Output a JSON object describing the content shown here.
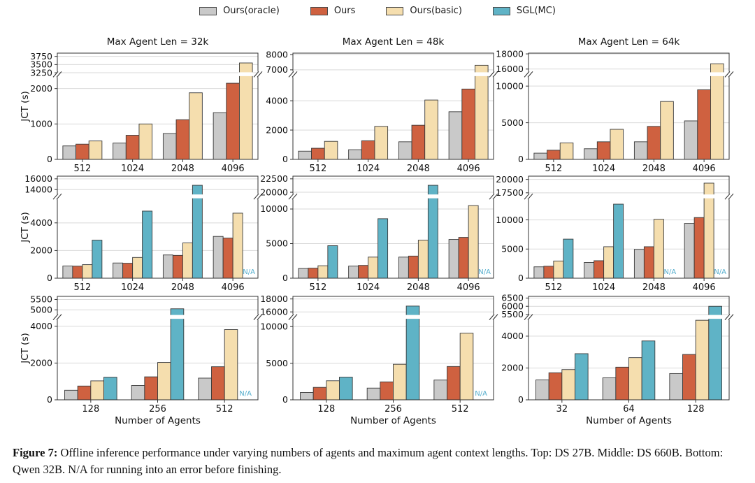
{
  "legend": {
    "items": [
      {
        "label": "Ours(oracle)",
        "color": "#c9c9c9"
      },
      {
        "label": "Ours",
        "color": "#cf6140"
      },
      {
        "label": "Ours(basic)",
        "color": "#f5deae"
      },
      {
        "label": "SGL(MC)",
        "color": "#5fb3c6"
      }
    ]
  },
  "figure_text": {
    "ylabel": "JCT (s)",
    "xlabel": "Number of Agents",
    "na": "N/A"
  },
  "caption": {
    "label": "Figure 7:",
    "text": " Offline inference performance under varying numbers of agents and maximum agent context lengths. Top: DS 27B. Middle: DS 660B. Bottom: Qwen 32B. N/A for running into an error before finishing."
  },
  "colors": {
    "bar_stroke": "#3a3a3a",
    "grid": "#d9d9d9",
    "spine": "#333333",
    "text": "#111111",
    "na_text": "#56aecd"
  },
  "chart_data": [
    {
      "type": "bar",
      "row": 0,
      "col": 0,
      "title": "Max Agent Len = 32k",
      "ylabel": "JCT (s)",
      "xlabel": "",
      "categories": [
        "512",
        "1024",
        "2048",
        "4096"
      ],
      "series": [
        {
          "name": "Ours(oracle)",
          "values": [
            380,
            460,
            730,
            1320
          ]
        },
        {
          "name": "Ours",
          "values": [
            430,
            680,
            1120,
            2150
          ]
        },
        {
          "name": "Ours(basic)",
          "values": [
            520,
            1000,
            1880,
            3550
          ]
        }
      ],
      "axis": {
        "lower_ticks": [
          0,
          1000,
          2000
        ],
        "lower_max": 2400,
        "upper_ticks": [
          3250,
          3500,
          3750
        ],
        "upper_min": 3200,
        "upper_max": 3850
      }
    },
    {
      "type": "bar",
      "row": 0,
      "col": 1,
      "title": "Max Agent Len = 48k",
      "ylabel": "",
      "xlabel": "",
      "categories": [
        "512",
        "1024",
        "2048",
        "4096"
      ],
      "series": [
        {
          "name": "Ours(oracle)",
          "values": [
            560,
            660,
            1200,
            3250
          ]
        },
        {
          "name": "Ours",
          "values": [
            760,
            1270,
            2330,
            4800
          ]
        },
        {
          "name": "Ours(basic)",
          "values": [
            1230,
            2250,
            4050,
            7300
          ]
        }
      ],
      "axis": {
        "lower_ticks": [
          0,
          2000,
          4000
        ],
        "lower_max": 5800,
        "upper_ticks": [
          7000,
          8000
        ],
        "upper_min": 6700,
        "upper_max": 8100
      }
    },
    {
      "type": "bar",
      "row": 0,
      "col": 2,
      "title": "Max Agent Len = 64k",
      "ylabel": "",
      "xlabel": "",
      "categories": [
        "512",
        "1024",
        "2048",
        "4096"
      ],
      "series": [
        {
          "name": "Ours(oracle)",
          "values": [
            850,
            1450,
            2400,
            5250
          ]
        },
        {
          "name": "Ours",
          "values": [
            1250,
            2400,
            4500,
            9500
          ]
        },
        {
          "name": "Ours(basic)",
          "values": [
            2250,
            4100,
            7900,
            16700
          ]
        }
      ],
      "axis": {
        "lower_ticks": [
          0,
          5000,
          10000
        ],
        "lower_max": 11600,
        "upper_ticks": [
          16000,
          18000
        ],
        "upper_min": 15300,
        "upper_max": 18100
      }
    },
    {
      "type": "bar",
      "row": 1,
      "col": 0,
      "title": "",
      "ylabel": "JCT (s)",
      "xlabel": "",
      "categories": [
        "512",
        "1024",
        "2048",
        "4096"
      ],
      "series": [
        {
          "name": "Ours(oracle)",
          "values": [
            880,
            1100,
            1680,
            3020
          ]
        },
        {
          "name": "Ours",
          "values": [
            870,
            1080,
            1650,
            2900
          ]
        },
        {
          "name": "Ours(basic)",
          "values": [
            980,
            1500,
            2550,
            4700
          ]
        },
        {
          "name": "SGL(MC)",
          "values": [
            2750,
            4850,
            14800,
            "N/A"
          ]
        }
      ],
      "axis": {
        "lower_ticks": [
          0,
          2000,
          4000
        ],
        "lower_max": 5900,
        "upper_ticks": [
          14000,
          16000
        ],
        "upper_min": 12700,
        "upper_max": 16500
      }
    },
    {
      "type": "bar",
      "row": 1,
      "col": 1,
      "title": "",
      "ylabel": "",
      "xlabel": "",
      "categories": [
        "512",
        "1024",
        "2048",
        "4096"
      ],
      "series": [
        {
          "name": "Ours(oracle)",
          "values": [
            1400,
            1750,
            3050,
            5600
          ]
        },
        {
          "name": "Ours",
          "values": [
            1450,
            1850,
            3200,
            5900
          ]
        },
        {
          "name": "Ours(basic)",
          "values": [
            1800,
            3050,
            5500,
            10500
          ]
        },
        {
          "name": "SGL(MC)",
          "values": [
            4700,
            8600,
            21300,
            "N/A"
          ]
        }
      ],
      "axis": {
        "lower_ticks": [
          0,
          5000,
          10000
        ],
        "lower_max": 11800,
        "upper_ticks": [
          20000,
          22500
        ],
        "upper_min": 19200,
        "upper_max": 23000
      }
    },
    {
      "type": "bar",
      "row": 1,
      "col": 2,
      "title": "",
      "ylabel": "",
      "xlabel": "",
      "categories": [
        "512",
        "1024",
        "2048",
        "4096"
      ],
      "series": [
        {
          "name": "Ours(oracle)",
          "values": [
            1950,
            2700,
            4950,
            9400
          ]
        },
        {
          "name": "Ours",
          "values": [
            2050,
            3000,
            5400,
            10400
          ]
        },
        {
          "name": "Ours(basic)",
          "values": [
            2950,
            5400,
            10100,
            19300
          ]
        },
        {
          "name": "SGL(MC)",
          "values": [
            6700,
            12700,
            "N/A",
            "N/A"
          ]
        }
      ],
      "axis": {
        "lower_ticks": [
          0,
          5000,
          10000
        ],
        "lower_max": 14000,
        "upper_ticks": [
          17500,
          20000
        ],
        "upper_min": 16800,
        "upper_max": 20600
      }
    },
    {
      "type": "bar",
      "row": 2,
      "col": 0,
      "title": "",
      "ylabel": "JCT (s)",
      "xlabel": "Number of Agents",
      "categories": [
        "128",
        "256",
        "512"
      ],
      "series": [
        {
          "name": "Ours(oracle)",
          "values": [
            520,
            780,
            1180
          ]
        },
        {
          "name": "Ours",
          "values": [
            750,
            1250,
            1800
          ]
        },
        {
          "name": "Ours(basic)",
          "values": [
            1030,
            2030,
            3820
          ]
        },
        {
          "name": "SGL(MC)",
          "values": [
            1230,
            5050,
            "N/A"
          ]
        }
      ],
      "axis": {
        "lower_ticks": [
          0,
          2000,
          4000
        ],
        "lower_max": 4500,
        "upper_ticks": [
          5000,
          5500
        ],
        "upper_min": 4650,
        "upper_max": 5650
      }
    },
    {
      "type": "bar",
      "row": 2,
      "col": 1,
      "title": "",
      "ylabel": "",
      "xlabel": "Number of Agents",
      "categories": [
        "128",
        "256",
        "512"
      ],
      "series": [
        {
          "name": "Ours(oracle)",
          "values": [
            1000,
            1600,
            2700
          ]
        },
        {
          "name": "Ours",
          "values": [
            1700,
            2450,
            4550
          ]
        },
        {
          "name": "Ours(basic)",
          "values": [
            2600,
            4850,
            9100
          ]
        },
        {
          "name": "SGL(MC)",
          "values": [
            3100,
            16900,
            "N/A"
          ]
        }
      ],
      "axis": {
        "lower_ticks": [
          0,
          5000,
          10000
        ],
        "lower_max": 11300,
        "upper_ticks": [
          16000,
          18000
        ],
        "upper_min": 15200,
        "upper_max": 18400
      }
    },
    {
      "type": "bar",
      "row": 2,
      "col": 2,
      "title": "",
      "ylabel": "",
      "xlabel": "Number of Agents",
      "categories": [
        "32",
        "64",
        "128"
      ],
      "series": [
        {
          "name": "Ours(oracle)",
          "values": [
            1250,
            1380,
            1650
          ]
        },
        {
          "name": "Ours",
          "values": [
            1700,
            2050,
            2850
          ]
        },
        {
          "name": "Ours(basic)",
          "values": [
            1900,
            2650,
            5000
          ]
        },
        {
          "name": "SGL(MC)",
          "values": [
            2900,
            3700,
            6000
          ]
        }
      ],
      "axis": {
        "lower_ticks": [
          0,
          2000,
          4000
        ],
        "lower_max": 5200,
        "upper_ticks": [
          5500,
          6000,
          6500
        ],
        "upper_min": 5350,
        "upper_max": 6600
      }
    }
  ]
}
